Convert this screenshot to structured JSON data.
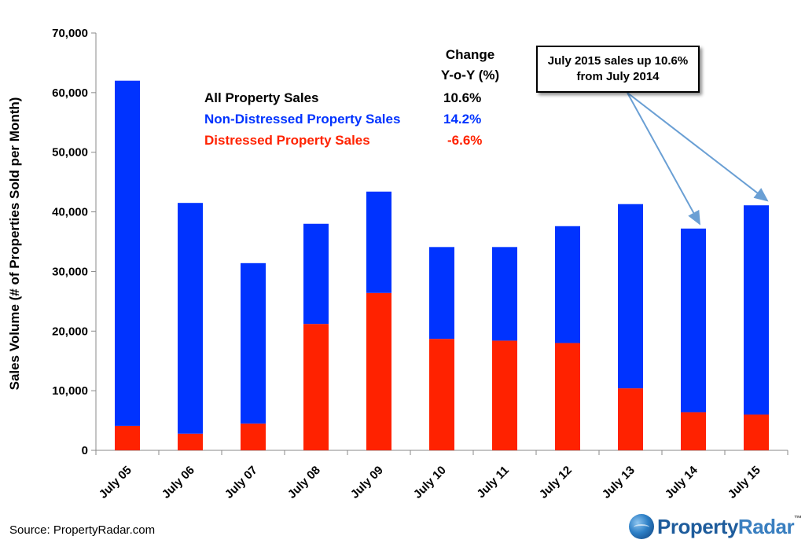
{
  "chart_data": {
    "type": "bar",
    "stacked": true,
    "categories": [
      "July 05",
      "July 06",
      "July 07",
      "July 08",
      "July 09",
      "July 10",
      "July 11",
      "July 12",
      "July 13",
      "July 14",
      "July 15"
    ],
    "series": [
      {
        "name": "Distressed Property Sales",
        "color": "#ff2200",
        "values": [
          4100,
          2800,
          4500,
          21200,
          26400,
          18700,
          18400,
          18000,
          10400,
          6400,
          6000
        ]
      },
      {
        "name": "Non-Distressed Property Sales",
        "color": "#0033ff",
        "values": [
          57900,
          38700,
          26900,
          16800,
          17000,
          15400,
          15700,
          19600,
          30900,
          30800,
          35100
        ]
      }
    ],
    "totals": [
      62000,
      41500,
      31400,
      38000,
      43400,
      34100,
      34100,
      37600,
      41300,
      37200,
      41100
    ],
    "ylabel": "Sales Volume (# of Properties Sold per Month)",
    "ylim": [
      0,
      70000
    ],
    "yticks": [
      "0",
      "10,000",
      "20,000",
      "30,000",
      "40,000",
      "50,000",
      "60,000",
      "70,000"
    ],
    "grid": false,
    "legend": {
      "header_line1": "Change",
      "header_line2": "Y-o-Y (%)",
      "rows": [
        {
          "label": "All Property Sales",
          "value": "10.6%",
          "color": "#000000"
        },
        {
          "label": "Non-Distressed Property Sales",
          "value": "14.2%",
          "color": "#0033ff"
        },
        {
          "label": "Distressed Property Sales",
          "value": "-6.6%",
          "color": "#ff2200"
        }
      ]
    },
    "annotation": {
      "line1": "July 2015 sales up 10.6%",
      "line2": "from July 2014",
      "targets": [
        "July 14",
        "July 15"
      ]
    },
    "source": "Source: PropertyRadar.com"
  },
  "logo": {
    "part1": "Property",
    "part2": "Radar",
    "tm": "™"
  }
}
